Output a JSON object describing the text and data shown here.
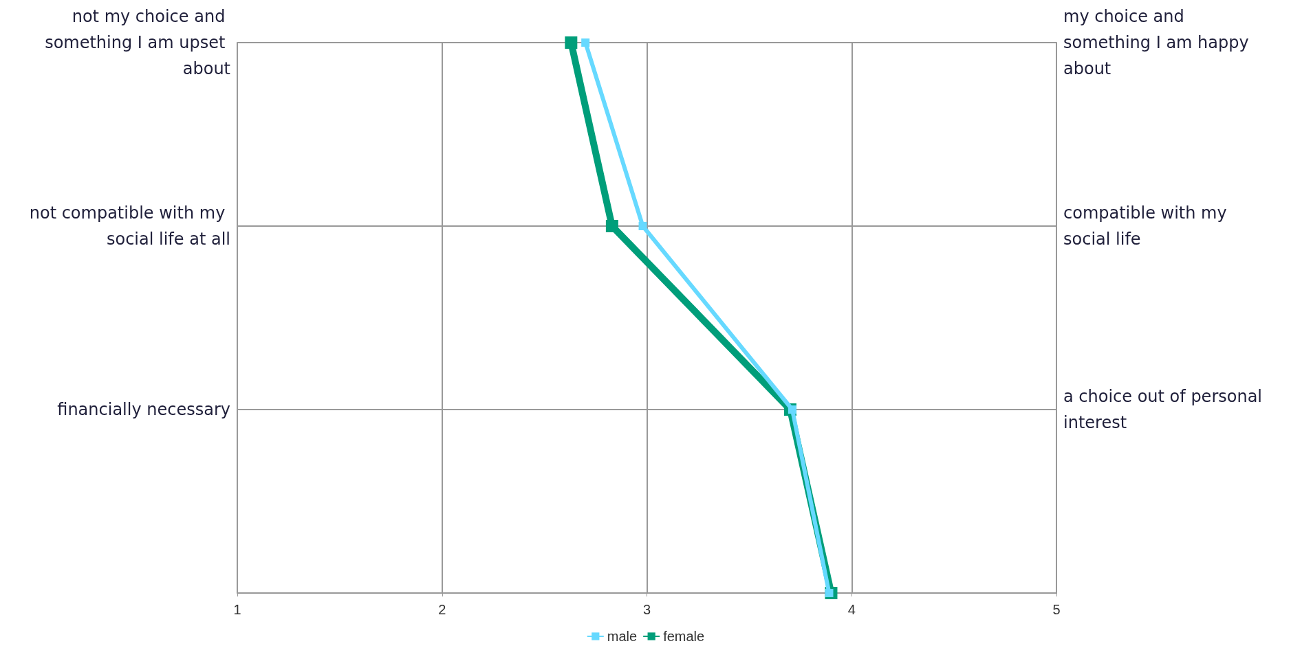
{
  "chart_data": {
    "type": "line",
    "orientation": "horizontal",
    "categories": [
      "not my choice and something I am upset about",
      "not compatible with my social life at all",
      "financially necessary",
      null
    ],
    "y2_categories": [
      "my choice and something I am happy about",
      "compatible with my social life",
      "a choice out of personal interest",
      null
    ],
    "series": [
      {
        "name": "male",
        "color": "#66d9ff",
        "values": [
          2.7,
          2.98,
          3.71,
          3.89
        ]
      },
      {
        "name": "female",
        "color": "#009e7a",
        "values": [
          2.63,
          2.83,
          3.7,
          3.9
        ]
      }
    ],
    "xlim": [
      1,
      5
    ],
    "xticks": [
      1,
      2,
      3,
      4,
      5
    ],
    "grid": true,
    "legend": "bottom",
    "marker": "square",
    "line_style": "solid"
  }
}
